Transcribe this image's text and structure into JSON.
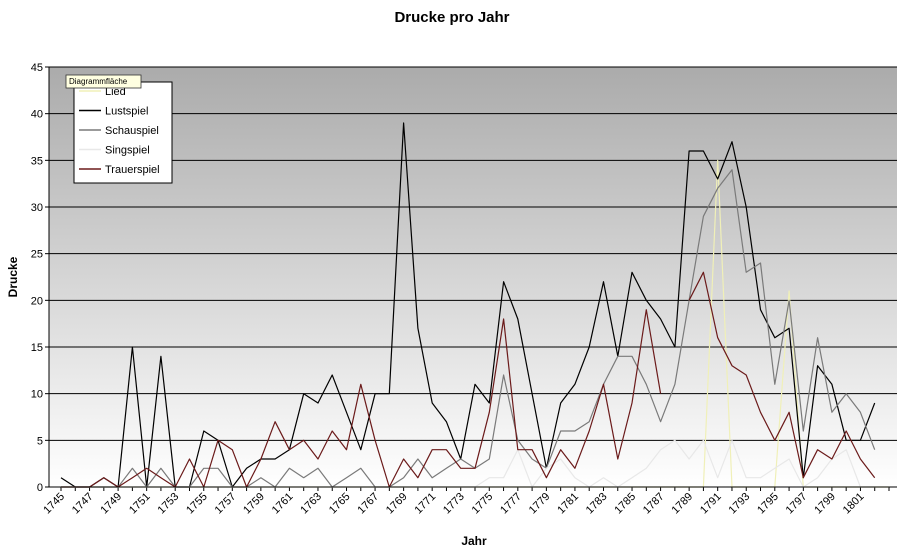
{
  "chart_data": {
    "type": "line",
    "title": "Drucke pro Jahr",
    "xlabel": "Jahr",
    "ylabel": "Drucke",
    "ylim": [
      0,
      45
    ],
    "yticks": [
      0,
      5,
      10,
      15,
      20,
      25,
      30,
      35,
      40,
      45
    ],
    "grid": true,
    "legend_position": "top-left",
    "tooltip": "Diagrammfläche",
    "x": [
      1745,
      1746,
      1747,
      1748,
      1749,
      1750,
      1751,
      1752,
      1753,
      1754,
      1755,
      1756,
      1757,
      1758,
      1759,
      1760,
      1761,
      1762,
      1763,
      1764,
      1765,
      1766,
      1767,
      1768,
      1769,
      1770,
      1771,
      1772,
      1773,
      1774,
      1775,
      1776,
      1777,
      1778,
      1779,
      1780,
      1781,
      1782,
      1783,
      1784,
      1785,
      1786,
      1787,
      1788,
      1789,
      1790,
      1791,
      1792,
      1793,
      1794,
      1795,
      1796,
      1797,
      1798,
      1799,
      1800,
      1801,
      1802,
      1803
    ],
    "xtick_labels": [
      "1745",
      "1747",
      "1749",
      "1751",
      "1753",
      "1755",
      "1757",
      "1759",
      "1761",
      "1763",
      "1765",
      "1767",
      "1769",
      "1771",
      "1773",
      "1775",
      "1777",
      "1779",
      "1781",
      "1783",
      "1785",
      "1787",
      "1789",
      "1791",
      "1793",
      "1795",
      "1797",
      "1799",
      "1801"
    ],
    "series": [
      {
        "name": "Lied",
        "color": "#f0f0b8",
        "values": [
          0,
          0,
          0,
          0,
          0,
          0,
          0,
          0,
          0,
          0,
          0,
          0,
          0,
          0,
          0,
          0,
          0,
          0,
          0,
          0,
          0,
          0,
          0,
          0,
          0,
          0,
          0,
          0,
          0,
          0,
          0,
          0,
          0,
          0,
          0,
          0,
          0,
          0,
          0,
          0,
          0,
          0,
          0,
          0,
          0,
          0,
          35,
          0,
          0,
          0,
          0,
          21,
          0,
          0,
          0,
          0,
          0,
          0,
          0
        ]
      },
      {
        "name": "Lustspiel",
        "color": "#000000",
        "values": [
          1,
          0,
          0,
          1,
          0,
          15,
          0,
          14,
          0,
          0,
          6,
          5,
          0,
          2,
          3,
          3,
          4,
          10,
          9,
          12,
          8,
          4,
          10,
          10,
          39,
          17,
          9,
          7,
          3,
          11,
          9,
          22,
          18,
          10,
          2,
          9,
          11,
          15,
          22,
          14,
          23,
          20,
          18,
          15,
          36,
          36,
          33,
          37,
          30,
          19,
          16,
          17,
          1,
          13,
          11,
          5,
          5,
          9,
          null
        ]
      },
      {
        "name": "Schauspiel",
        "color": "#7a7a7a",
        "values": [
          0,
          0,
          0,
          0,
          0,
          2,
          0,
          2,
          0,
          0,
          2,
          2,
          0,
          0,
          1,
          0,
          2,
          1,
          2,
          0,
          1,
          2,
          0,
          0,
          1,
          3,
          1,
          2,
          3,
          2,
          3,
          12,
          5,
          3,
          2,
          6,
          6,
          7,
          11,
          14,
          14,
          11,
          7,
          11,
          20,
          29,
          32,
          34,
          23,
          24,
          11,
          20,
          6,
          16,
          8,
          10,
          8,
          4,
          null
        ]
      },
      {
        "name": "Singspiel",
        "color": "#e8e8e8",
        "values": [
          0,
          0,
          0,
          0,
          0,
          0,
          0,
          0,
          0,
          0,
          0,
          0,
          0,
          0,
          0,
          0,
          0,
          0,
          0,
          0,
          0,
          0,
          0,
          0,
          0,
          0,
          0,
          0,
          0,
          0,
          1,
          1,
          4,
          0,
          2,
          3,
          1,
          0,
          1,
          0,
          1,
          2,
          4,
          5,
          3,
          5,
          1,
          5,
          1,
          1,
          2,
          3,
          0,
          1,
          3,
          4,
          0,
          0,
          null
        ]
      },
      {
        "name": "Trauerspiel",
        "color": "#6b1a1a",
        "values": [
          0,
          0,
          0,
          1,
          0,
          1,
          2,
          1,
          0,
          3,
          0,
          5,
          4,
          0,
          3,
          7,
          4,
          5,
          3,
          6,
          4,
          11,
          5,
          0,
          3,
          1,
          4,
          4,
          2,
          2,
          8,
          18,
          4,
          4,
          1,
          4,
          2,
          6,
          11,
          3,
          9,
          19,
          10,
          null,
          20,
          23,
          16,
          13,
          12,
          8,
          5,
          8,
          1,
          4,
          3,
          6,
          3,
          1,
          null
        ]
      }
    ]
  }
}
